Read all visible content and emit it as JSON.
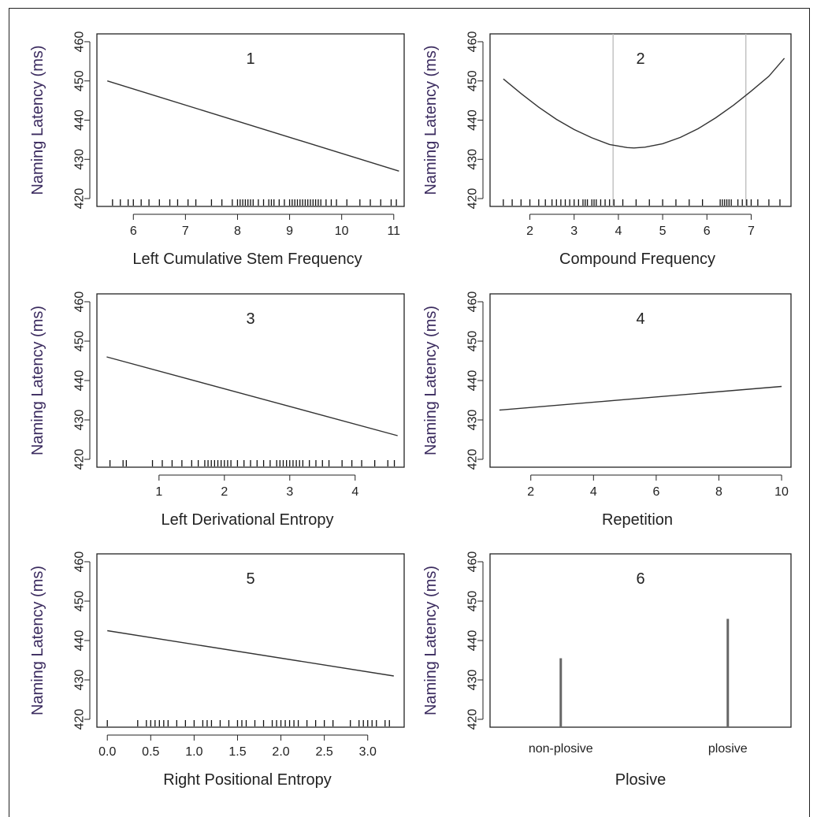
{
  "figure": {
    "ylabel_color": "#3a2a5e",
    "line_color": "#333333",
    "ref_line_color": "#bbbbbb"
  },
  "chart_data": [
    {
      "panel": "1",
      "type": "line",
      "xlabel": "Left Cumulative Stem Frequency",
      "ylabel": "Naming Latency (ms)",
      "xlim": [
        5.3,
        11.2
      ],
      "ylim": [
        418,
        462
      ],
      "xticks": [
        6,
        7,
        8,
        9,
        10,
        11
      ],
      "xtick_labels": [
        "6",
        "7",
        "8",
        "9",
        "10",
        "11"
      ],
      "yticks": [
        420,
        430,
        440,
        450,
        460
      ],
      "ytick_labels": [
        "420",
        "430",
        "440",
        "450",
        "460"
      ],
      "series": [
        {
          "x": [
            5.5,
            11.1
          ],
          "y": [
            450,
            427
          ]
        }
      ],
      "rug": [
        5.6,
        5.75,
        5.9,
        6.0,
        6.15,
        6.3,
        6.5,
        6.7,
        6.85,
        7.05,
        7.2,
        7.5,
        7.7,
        7.9,
        8.0,
        8.05,
        8.1,
        8.15,
        8.2,
        8.25,
        8.3,
        8.4,
        8.5,
        8.6,
        8.65,
        8.7,
        8.8,
        8.9,
        9.0,
        9.05,
        9.1,
        9.15,
        9.2,
        9.25,
        9.3,
        9.35,
        9.4,
        9.45,
        9.5,
        9.55,
        9.6,
        9.7,
        9.8,
        9.9,
        10.1,
        10.35,
        10.55,
        10.75,
        10.95,
        11.05
      ]
    },
    {
      "panel": "2",
      "type": "line",
      "xlabel": "Compound Frequency",
      "ylabel": "Naming Latency (ms)",
      "xlim": [
        1.1,
        7.9
      ],
      "ylim": [
        418,
        462
      ],
      "xticks": [
        2,
        3,
        4,
        5,
        6,
        7
      ],
      "xtick_labels": [
        "2",
        "3",
        "4",
        "5",
        "6",
        "7"
      ],
      "yticks": [
        420,
        430,
        440,
        450,
        460
      ],
      "ytick_labels": [
        "420",
        "430",
        "440",
        "450",
        "460"
      ],
      "vlines": [
        3.88,
        6.88
      ],
      "series": [
        {
          "x": [
            1.4,
            1.8,
            2.2,
            2.6,
            3.0,
            3.4,
            3.8,
            4.2,
            4.35,
            4.6,
            5.0,
            5.4,
            5.8,
            6.2,
            6.6,
            7.0,
            7.4,
            7.75
          ],
          "y": [
            450.5,
            446.8,
            443.3,
            440.2,
            437.6,
            435.5,
            433.8,
            433.0,
            432.9,
            433.1,
            434.0,
            435.6,
            437.8,
            440.6,
            443.8,
            447.4,
            451.2,
            455.8
          ]
        }
      ],
      "rug": [
        1.4,
        1.6,
        1.8,
        2.0,
        2.2,
        2.35,
        2.5,
        2.6,
        2.7,
        2.8,
        2.9,
        3.0,
        3.1,
        3.2,
        3.25,
        3.3,
        3.4,
        3.45,
        3.5,
        3.6,
        3.7,
        3.8,
        3.9,
        4.1,
        4.4,
        4.7,
        5.0,
        5.3,
        5.6,
        5.9,
        6.3,
        6.35,
        6.4,
        6.45,
        6.5,
        6.55,
        6.7,
        6.8,
        6.9,
        7.0,
        7.15,
        7.4,
        7.65
      ]
    },
    {
      "panel": "3",
      "type": "line",
      "xlabel": "Left Derivational Entropy",
      "ylabel": "Naming Latency (ms)",
      "xlim": [
        0.05,
        4.75
      ],
      "ylim": [
        418,
        462
      ],
      "xticks": [
        1,
        2,
        3,
        4
      ],
      "xtick_labels": [
        "1",
        "2",
        "3",
        "4"
      ],
      "yticks": [
        420,
        430,
        440,
        450,
        460
      ],
      "ytick_labels": [
        "420",
        "430",
        "440",
        "450",
        "460"
      ],
      "series": [
        {
          "x": [
            0.2,
            4.65
          ],
          "y": [
            446,
            426
          ]
        }
      ],
      "rug": [
        0.25,
        0.45,
        0.5,
        0.9,
        1.05,
        1.2,
        1.35,
        1.5,
        1.6,
        1.7,
        1.75,
        1.8,
        1.85,
        1.9,
        1.95,
        2.0,
        2.05,
        2.1,
        2.2,
        2.3,
        2.4,
        2.5,
        2.6,
        2.7,
        2.8,
        2.85,
        2.9,
        2.95,
        3.0,
        3.05,
        3.1,
        3.15,
        3.2,
        3.3,
        3.4,
        3.5,
        3.6,
        3.8,
        3.95,
        4.1,
        4.3,
        4.5,
        4.6
      ]
    },
    {
      "panel": "4",
      "type": "line",
      "xlabel": "Repetition",
      "ylabel": "Naming Latency (ms)",
      "xlim": [
        0.7,
        10.3
      ],
      "ylim": [
        418,
        462
      ],
      "xticks": [
        2,
        4,
        6,
        8,
        10
      ],
      "xtick_labels": [
        "2",
        "4",
        "6",
        "8",
        "10"
      ],
      "yticks": [
        420,
        430,
        440,
        450,
        460
      ],
      "ytick_labels": [
        "420",
        "430",
        "440",
        "450",
        "460"
      ],
      "series": [
        {
          "x": [
            1,
            10
          ],
          "y": [
            432.5,
            438.5
          ]
        }
      ],
      "rug": []
    },
    {
      "panel": "5",
      "type": "line",
      "xlabel": "Right Positional Entropy",
      "ylabel": "Naming Latency (ms)",
      "xlim": [
        -0.12,
        3.42
      ],
      "ylim": [
        418,
        462
      ],
      "xticks": [
        0.0,
        0.5,
        1.0,
        1.5,
        2.0,
        2.5,
        3.0
      ],
      "xtick_labels": [
        "0.0",
        "0.5",
        "1.0",
        "1.5",
        "2.0",
        "2.5",
        "3.0"
      ],
      "yticks": [
        420,
        430,
        440,
        450,
        460
      ],
      "ytick_labels": [
        "420",
        "430",
        "440",
        "450",
        "460"
      ],
      "series": [
        {
          "x": [
            0.0,
            3.3
          ],
          "y": [
            442.5,
            431
          ]
        }
      ],
      "rug": [
        0.0,
        0.35,
        0.45,
        0.5,
        0.55,
        0.6,
        0.65,
        0.7,
        0.8,
        0.9,
        1.0,
        1.1,
        1.15,
        1.2,
        1.3,
        1.4,
        1.5,
        1.55,
        1.6,
        1.7,
        1.8,
        1.9,
        1.95,
        2.0,
        2.05,
        2.1,
        2.15,
        2.2,
        2.3,
        2.4,
        2.5,
        2.6,
        2.8,
        2.9,
        2.95,
        3.0,
        3.05,
        3.1,
        3.2,
        3.25
      ]
    },
    {
      "panel": "6",
      "type": "bar",
      "xlabel": "Plosive",
      "ylabel": "Naming Latency (ms)",
      "categories": [
        "non-plosive",
        "plosive"
      ],
      "values": [
        435.5,
        445.5
      ],
      "ylim": [
        418,
        462
      ],
      "yticks": [
        420,
        430,
        440,
        450,
        460
      ],
      "ytick_labels": [
        "420",
        "430",
        "440",
        "450",
        "460"
      ]
    }
  ]
}
